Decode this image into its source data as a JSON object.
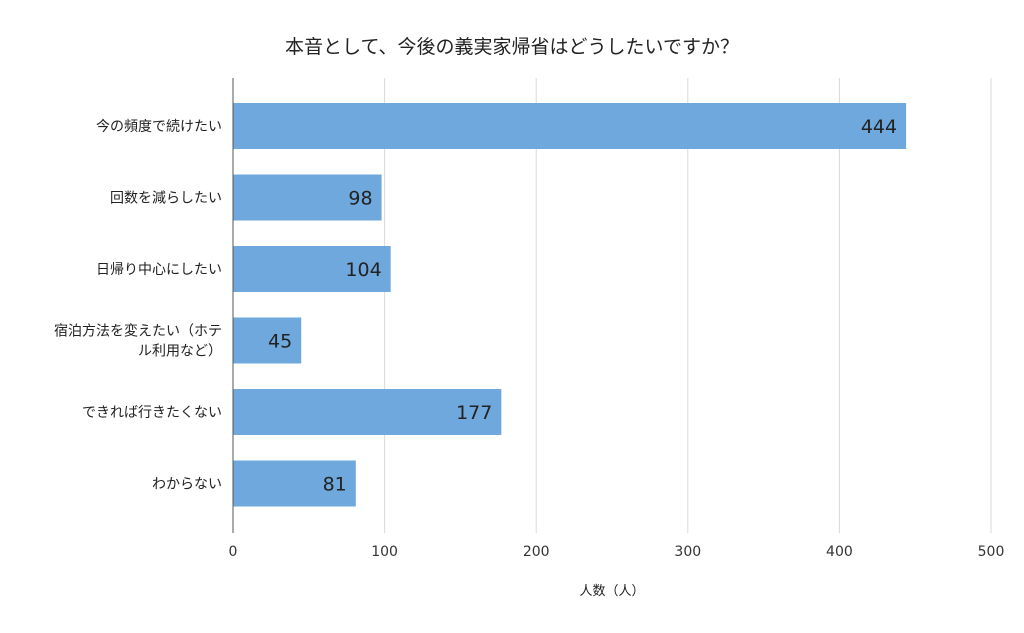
{
  "chart_data": {
    "type": "bar",
    "orientation": "horizontal",
    "title": "本音として、今後の義実家帰省はどうしたいですか？",
    "xlabel": "人数（人）",
    "ylabel": "",
    "categories": [
      [
        "今の頻度で続けたい"
      ],
      [
        "回数を減らしたい"
      ],
      [
        "日帰り中心にしたい"
      ],
      [
        "宿泊方法を変えたい（ホテ",
        "ル利用など）"
      ],
      [
        "できれば行きたくない"
      ],
      [
        "わからない"
      ]
    ],
    "values": [
      444,
      98,
      104,
      45,
      177,
      81
    ],
    "xlim": [
      0,
      500
    ],
    "xticks": [
      0,
      100,
      200,
      300,
      400,
      500
    ],
    "grid": true,
    "legend": "none",
    "colors": {
      "bar": "#6fa8dc",
      "grid": "#d9d9d9",
      "axis": "#555555"
    }
  }
}
